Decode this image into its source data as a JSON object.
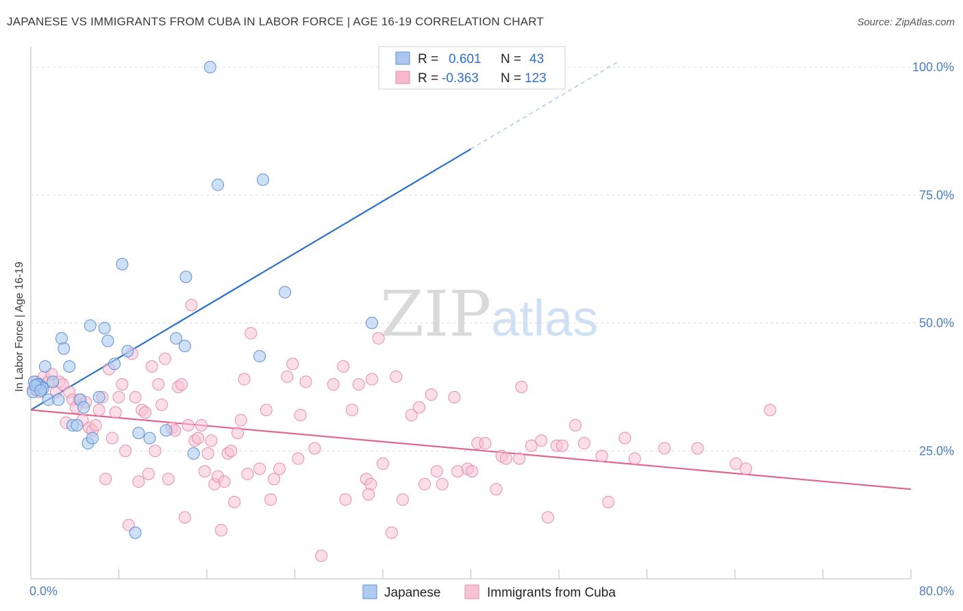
{
  "title": "JAPANESE VS IMMIGRANTS FROM CUBA IN LABOR FORCE | AGE 16-19 CORRELATION CHART",
  "source": "Source: ZipAtlas.com",
  "watermark": {
    "zip": "ZIP",
    "atlas": "atlas"
  },
  "legend": {
    "r_label": "R =",
    "n_label": "N =",
    "rows": [
      {
        "r": "0.601",
        "n": "43",
        "color": "#a9c7ef"
      },
      {
        "r": "-0.363",
        "n": "123",
        "color": "#f5b8cc"
      }
    ]
  },
  "colors": {
    "japanese_fill": "#aecbf0",
    "japanese_stroke": "#5b8fd6",
    "japanese_line": "#2b6fce",
    "cuba_fill": "#f7c3d3",
    "cuba_stroke": "#e88aa9",
    "cuba_line": "#e06690",
    "tick_text": "#4a7ec8",
    "grid": "#dcdcdc"
  },
  "chart_data": {
    "type": "scatter",
    "ylabel": "In Labor Force | Age 16-19",
    "xlim": [
      0,
      80
    ],
    "ylim": [
      0,
      100
    ],
    "x_tick_labels": {
      "min": "0.0%",
      "max": "80.0%"
    },
    "y_tick_labels": [
      "25.0%",
      "50.0%",
      "75.0%",
      "100.0%"
    ],
    "y_ticks": [
      25,
      50,
      75,
      100
    ],
    "grid": true,
    "legend_position": "top-center",
    "series": [
      {
        "name": "Japanese",
        "r": 0.601,
        "n": 43,
        "trend": {
          "x0": 0,
          "y0": 33.0,
          "x1": 40,
          "y1": 84.0,
          "dashed_to_x": 53.5
        },
        "points": [
          [
            0.3,
            38.5
          ],
          [
            0.5,
            37.0
          ],
          [
            0.8,
            38.0
          ],
          [
            1.0,
            37.5
          ],
          [
            1.3,
            41.5
          ],
          [
            1.6,
            35.0
          ],
          [
            2.0,
            38.5
          ],
          [
            2.5,
            35.0
          ],
          [
            2.8,
            47.0
          ],
          [
            3.0,
            45.0
          ],
          [
            3.5,
            41.5
          ],
          [
            3.8,
            30.0
          ],
          [
            4.2,
            30.0
          ],
          [
            4.5,
            35.0
          ],
          [
            4.8,
            33.5
          ],
          [
            5.2,
            26.5
          ],
          [
            5.4,
            49.5
          ],
          [
            5.6,
            27.5
          ],
          [
            6.2,
            35.5
          ],
          [
            6.7,
            49.0
          ],
          [
            7.0,
            46.5
          ],
          [
            7.6,
            42.0
          ],
          [
            8.3,
            61.5
          ],
          [
            8.8,
            44.5
          ],
          [
            9.8,
            28.5
          ],
          [
            9.5,
            9.0
          ],
          [
            10.8,
            27.5
          ],
          [
            12.3,
            29.0
          ],
          [
            13.2,
            47.0
          ],
          [
            14.0,
            45.5
          ],
          [
            14.1,
            59.0
          ],
          [
            14.8,
            24.5
          ],
          [
            16.3,
            100.0
          ],
          [
            17.0,
            77.0
          ],
          [
            21.1,
            78.0
          ],
          [
            20.8,
            43.5
          ],
          [
            23.1,
            56.0
          ],
          [
            31.0,
            50.0
          ],
          [
            0.2,
            36.5
          ],
          [
            0.6,
            38.0
          ],
          [
            1.1,
            37.2
          ],
          [
            0.4,
            37.8
          ],
          [
            0.9,
            36.8
          ]
        ]
      },
      {
        "name": "Immigrants from Cuba",
        "r": -0.363,
        "n": 123,
        "trend": {
          "x0": 0,
          "y0": 33.0,
          "x1": 80,
          "y1": 17.5
        },
        "points": [
          [
            0.2,
            37.0
          ],
          [
            0.5,
            38.5
          ],
          [
            0.8,
            36.5
          ],
          [
            1.2,
            39.5
          ],
          [
            1.6,
            38.5
          ],
          [
            1.9,
            40.0
          ],
          [
            2.3,
            36.5
          ],
          [
            2.6,
            38.5
          ],
          [
            2.9,
            38.0
          ],
          [
            3.2,
            30.5
          ],
          [
            3.5,
            36.5
          ],
          [
            3.8,
            35.0
          ],
          [
            4.1,
            33.5
          ],
          [
            4.4,
            35.0
          ],
          [
            4.7,
            31.0
          ],
          [
            5.0,
            34.5
          ],
          [
            5.3,
            29.5
          ],
          [
            5.6,
            29.0
          ],
          [
            5.9,
            30.0
          ],
          [
            6.2,
            33.0
          ],
          [
            6.5,
            35.5
          ],
          [
            6.8,
            19.5
          ],
          [
            7.1,
            41.0
          ],
          [
            7.4,
            27.5
          ],
          [
            7.7,
            32.5
          ],
          [
            8.0,
            35.5
          ],
          [
            8.3,
            38.0
          ],
          [
            8.6,
            25.0
          ],
          [
            8.9,
            10.5
          ],
          [
            9.2,
            44.0
          ],
          [
            9.5,
            35.5
          ],
          [
            9.8,
            19.0
          ],
          [
            10.1,
            33.0
          ],
          [
            10.4,
            32.5
          ],
          [
            10.7,
            20.5
          ],
          [
            11.0,
            41.5
          ],
          [
            11.3,
            25.0
          ],
          [
            11.6,
            38.0
          ],
          [
            11.9,
            34.0
          ],
          [
            12.2,
            43.0
          ],
          [
            12.5,
            19.5
          ],
          [
            12.8,
            29.5
          ],
          [
            13.1,
            29.0
          ],
          [
            13.4,
            37.5
          ],
          [
            13.7,
            38.0
          ],
          [
            14.0,
            12.0
          ],
          [
            14.3,
            30.0
          ],
          [
            14.6,
            53.5
          ],
          [
            14.9,
            27.0
          ],
          [
            15.2,
            27.5
          ],
          [
            15.5,
            30.0
          ],
          [
            15.8,
            21.0
          ],
          [
            16.1,
            24.5
          ],
          [
            16.4,
            27.0
          ],
          [
            16.7,
            18.5
          ],
          [
            17.0,
            20.0
          ],
          [
            17.3,
            9.5
          ],
          [
            17.6,
            19.0
          ],
          [
            17.9,
            24.5
          ],
          [
            18.2,
            25.0
          ],
          [
            18.5,
            15.0
          ],
          [
            18.8,
            28.5
          ],
          [
            19.1,
            31.0
          ],
          [
            19.4,
            39.0
          ],
          [
            19.7,
            20.5
          ],
          [
            20.0,
            48.0
          ],
          [
            20.8,
            21.5
          ],
          [
            21.4,
            33.0
          ],
          [
            21.8,
            15.5
          ],
          [
            22.1,
            19.5
          ],
          [
            22.6,
            21.5
          ],
          [
            23.3,
            39.5
          ],
          [
            23.8,
            42.0
          ],
          [
            24.3,
            23.5
          ],
          [
            24.5,
            32.0
          ],
          [
            25.0,
            38.5
          ],
          [
            25.8,
            25.5
          ],
          [
            26.4,
            4.5
          ],
          [
            27.5,
            38.0
          ],
          [
            28.4,
            41.5
          ],
          [
            28.6,
            15.5
          ],
          [
            29.2,
            33.0
          ],
          [
            29.8,
            38.0
          ],
          [
            31.0,
            39.0
          ],
          [
            31.6,
            47.0
          ],
          [
            32.0,
            22.5
          ],
          [
            30.5,
            19.5
          ],
          [
            30.9,
            18.5
          ],
          [
            30.7,
            16.5
          ],
          [
            32.8,
            9.0
          ],
          [
            33.2,
            39.5
          ],
          [
            33.8,
            15.5
          ],
          [
            34.6,
            32.0
          ],
          [
            35.3,
            33.5
          ],
          [
            35.8,
            18.5
          ],
          [
            36.4,
            36.0
          ],
          [
            36.9,
            21.0
          ],
          [
            37.4,
            18.5
          ],
          [
            38.5,
            35.5
          ],
          [
            38.8,
            21.0
          ],
          [
            39.7,
            21.5
          ],
          [
            40.1,
            21.0
          ],
          [
            40.6,
            26.5
          ],
          [
            41.3,
            26.5
          ],
          [
            42.3,
            17.5
          ],
          [
            42.8,
            24.0
          ],
          [
            43.2,
            23.5
          ],
          [
            44.4,
            23.5
          ],
          [
            44.6,
            37.5
          ],
          [
            45.5,
            26.0
          ],
          [
            47.0,
            12.0
          ],
          [
            46.4,
            27.0
          ],
          [
            47.8,
            26.0
          ],
          [
            48.3,
            26.0
          ],
          [
            49.5,
            30.0
          ],
          [
            50.3,
            26.5
          ],
          [
            51.9,
            24.0
          ],
          [
            52.5,
            15.0
          ],
          [
            54.0,
            27.5
          ],
          [
            54.9,
            23.5
          ],
          [
            57.6,
            25.5
          ],
          [
            60.6,
            25.5
          ],
          [
            64.1,
            22.5
          ],
          [
            65.0,
            21.5
          ],
          [
            67.2,
            33.0
          ]
        ]
      }
    ]
  },
  "bottom_legend": [
    "Japanese",
    "Immigrants from Cuba"
  ]
}
